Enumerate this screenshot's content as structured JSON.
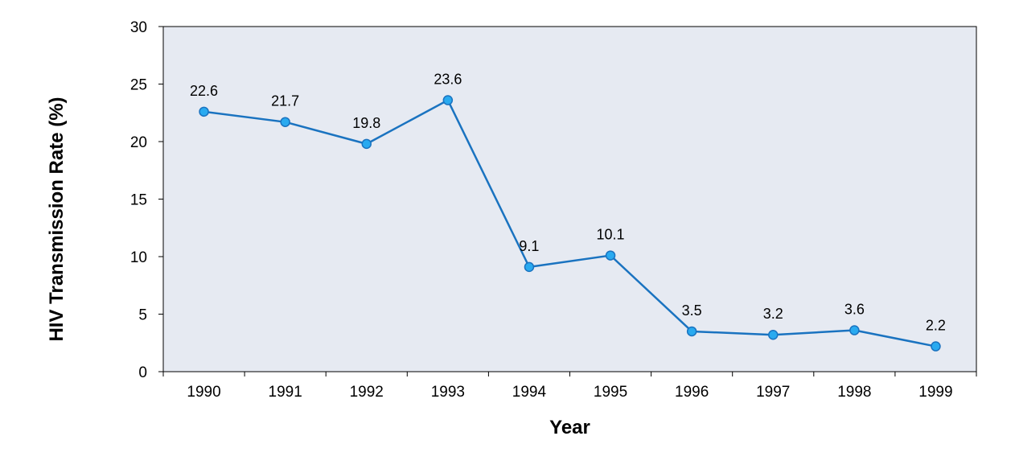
{
  "chart_data": {
    "type": "line",
    "title": "",
    "xlabel": "Year",
    "ylabel": "HIV Transmission Rate (%)",
    "categories": [
      "1990",
      "1991",
      "1992",
      "1993",
      "1994",
      "1995",
      "1996",
      "1997",
      "1998",
      "1999"
    ],
    "series": [
      {
        "values": [
          22.6,
          21.7,
          19.8,
          23.6,
          9.1,
          10.1,
          3.5,
          3.2,
          3.6,
          2.2
        ],
        "labels": [
          "22.6",
          "21.7",
          "19.8",
          "23.6",
          "9.1",
          "10.1",
          "3.5",
          "3.2",
          "3.6",
          "2.2"
        ]
      }
    ],
    "ylim": [
      0,
      30
    ],
    "yticks": [
      "0",
      "5",
      "10",
      "15",
      "20",
      "25",
      "30"
    ],
    "grid": false,
    "legend": "none",
    "colors": {
      "plot_background": "#e6eaf2",
      "line": "#1a73c0",
      "marker_fill": "#29aaf0",
      "marker_stroke": "#1a73c0"
    }
  }
}
